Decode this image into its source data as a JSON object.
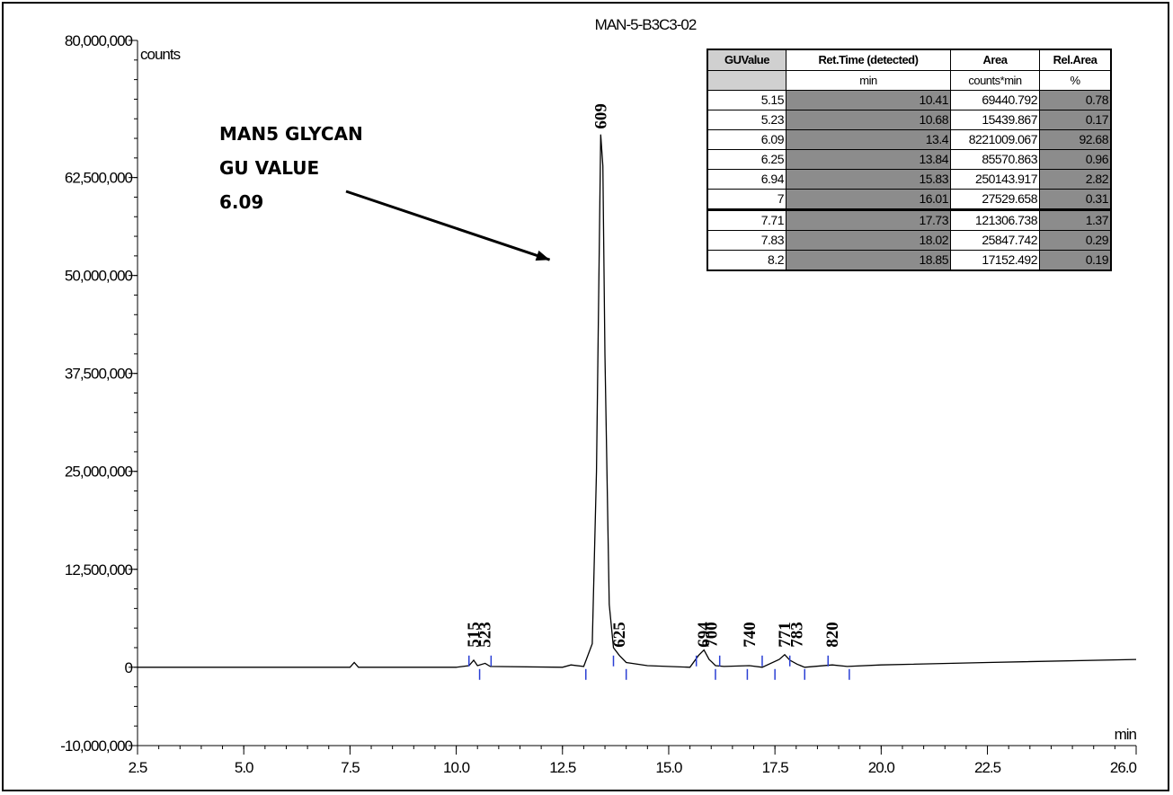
{
  "chart_data": {
    "type": "line",
    "title": "MAN-5-B3C3-02",
    "ylabel": "counts",
    "xlabel": "min",
    "xlim": [
      2.5,
      26.0
    ],
    "ylim": [
      -10000000,
      80000000
    ],
    "x_ticks": [
      {
        "value": 2.5,
        "label": "2.5"
      },
      {
        "value": 5.0,
        "label": "5.0"
      },
      {
        "value": 7.5,
        "label": "7.5"
      },
      {
        "value": 10.0,
        "label": "10.0"
      },
      {
        "value": 12.5,
        "label": "12.5"
      },
      {
        "value": 15.0,
        "label": "15.0"
      },
      {
        "value": 17.5,
        "label": "17.5"
      },
      {
        "value": 20.0,
        "label": "20.0"
      },
      {
        "value": 22.5,
        "label": "22.5"
      },
      {
        "value": 26.0,
        "label": "26.0"
      }
    ],
    "y_ticks": [
      {
        "value": 80000000,
        "label": "80,000,000"
      },
      {
        "value": 62500000,
        "label": "62,500,000"
      },
      {
        "value": 50000000,
        "label": "50,000,000"
      },
      {
        "value": 37500000,
        "label": "37,500,000"
      },
      {
        "value": 25000000,
        "label": "25,000,000"
      },
      {
        "value": 12500000,
        "label": "12,500,000"
      },
      {
        "value": 0,
        "label": "0"
      },
      {
        "value": -10000000,
        "label": "-10,000,000"
      }
    ],
    "series": [
      {
        "color": "#000000",
        "x": [
          2.5,
          5.0,
          7.5,
          7.6,
          7.7,
          10.0,
          10.3,
          10.41,
          10.5,
          10.68,
          10.8,
          12.5,
          12.7,
          13.0,
          13.2,
          13.3,
          13.4,
          13.45,
          13.5,
          13.6,
          13.7,
          13.84,
          14.0,
          14.5,
          15.5,
          15.7,
          15.83,
          15.95,
          16.01,
          16.1,
          16.3,
          16.9,
          17.2,
          17.6,
          17.73,
          17.85,
          18.02,
          18.2,
          18.85,
          19.2,
          20.0,
          22.5,
          26.0
        ],
        "y": [
          0,
          0,
          0,
          600000,
          0,
          0,
          200000,
          900000,
          200000,
          500000,
          100000,
          0,
          300000,
          100000,
          3000000,
          25000000,
          68000000,
          64000000,
          40000000,
          8000000,
          2500000,
          1500000,
          600000,
          200000,
          0,
          1500000,
          2200000,
          1000000,
          700000,
          200000,
          100000,
          200000,
          0,
          1000000,
          1600000,
          900000,
          400000,
          0,
          300000,
          100000,
          300000,
          600000,
          1000000
        ]
      }
    ],
    "peaks": [
      {
        "label": "515",
        "x": 10.41
      },
      {
        "label": "523",
        "x": 10.68
      },
      {
        "label": "609",
        "x": 13.4
      },
      {
        "label": "625",
        "x": 13.84
      },
      {
        "label": "694",
        "x": 15.83
      },
      {
        "label": "700",
        "x": 16.01
      },
      {
        "label": "740",
        "x": 16.9
      },
      {
        "label": "771",
        "x": 17.73
      },
      {
        "label": "783",
        "x": 18.02
      },
      {
        "label": "820",
        "x": 18.85
      }
    ],
    "integration_marks": [
      10.3,
      10.55,
      10.82,
      13.05,
      13.7,
      14.0,
      15.65,
      16.1,
      16.2,
      16.85,
      17.2,
      17.5,
      17.85,
      18.2,
      18.75,
      19.25
    ],
    "annotation": {
      "lines": [
        "MAN5 GLYCAN",
        "GU VALUE",
        "6.09"
      ],
      "arrow_to": {
        "x": 12.2,
        "y": 52000000
      }
    },
    "grid": false,
    "legend": "none"
  },
  "table": {
    "headers": [
      "GUValue",
      "Ret.Time (detected)",
      "Area",
      "Rel.Area"
    ],
    "units": [
      "",
      "min",
      "counts*min",
      "%"
    ],
    "rows": [
      [
        "5.15",
        "10.41",
        "69440.792",
        "0.78"
      ],
      [
        "5.23",
        "10.68",
        "15439.867",
        "0.17"
      ],
      [
        "6.09",
        "13.4",
        "8221009.067",
        "92.68"
      ],
      [
        "6.25",
        "13.84",
        "85570.863",
        "0.96"
      ],
      [
        "6.94",
        "15.83",
        "250143.917",
        "2.82"
      ],
      [
        "7",
        "16.01",
        "27529.658",
        "0.31"
      ],
      [
        "7.71",
        "17.73",
        "121306.738",
        "1.37"
      ],
      [
        "7.83",
        "18.02",
        "25847.742",
        "0.29"
      ],
      [
        "8.2",
        "18.85",
        "17152.492",
        "0.19"
      ]
    ]
  }
}
